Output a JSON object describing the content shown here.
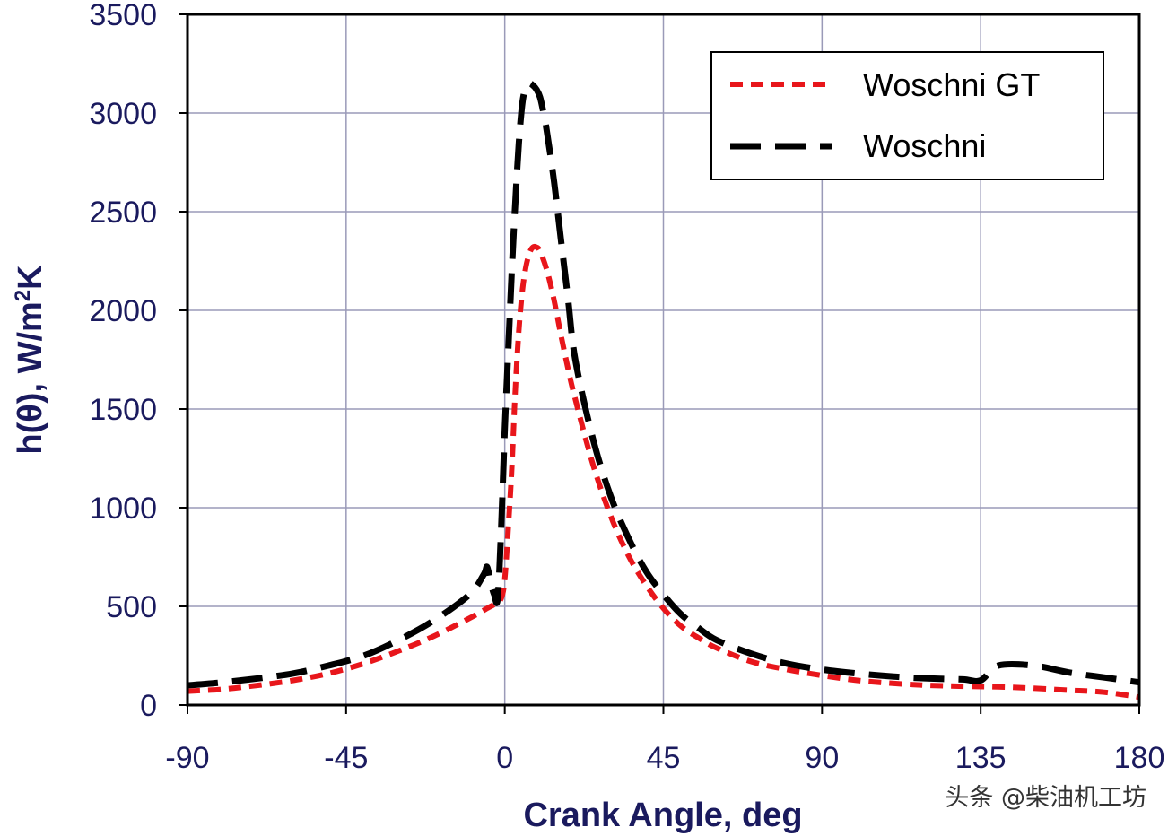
{
  "chart_data": {
    "type": "line",
    "title": "",
    "xlabel": "Crank Angle, deg",
    "ylabel_main": "h(θ), W/m",
    "ylabel_sup": "2",
    "ylabel_tail": "K",
    "xlim": [
      -90,
      180
    ],
    "ylim": [
      0,
      3500
    ],
    "xticks": [
      -90,
      -45,
      0,
      45,
      90,
      135,
      180
    ],
    "yticks": [
      0,
      500,
      1000,
      1500,
      2000,
      2500,
      3000,
      3500
    ],
    "grid": true,
    "legend_position": "top-right",
    "series": [
      {
        "name": "Woschni GT",
        "color": "#e8161b",
        "style": "short-dash",
        "x": [
          -90,
          -80,
          -70,
          -60,
          -50,
          -40,
          -30,
          -20,
          -10,
          -5,
          -3,
          -1,
          0,
          1,
          2,
          3,
          4,
          5,
          6,
          7,
          8,
          9,
          10,
          12,
          14,
          16,
          18,
          20,
          25,
          30,
          35,
          40,
          45,
          50,
          55,
          60,
          70,
          80,
          90,
          100,
          110,
          120,
          130,
          140,
          150,
          160,
          170,
          180
        ],
        "y": [
          70,
          80,
          100,
          125,
          160,
          210,
          275,
          350,
          440,
          490,
          510,
          540,
          640,
          900,
          1200,
          1600,
          1900,
          2100,
          2220,
          2290,
          2320,
          2320,
          2300,
          2200,
          2050,
          1870,
          1700,
          1550,
          1220,
          960,
          760,
          610,
          490,
          400,
          340,
          290,
          220,
          180,
          150,
          125,
          110,
          100,
          95,
          92,
          85,
          75,
          65,
          40
        ]
      },
      {
        "name": "Woschni",
        "color": "#000000",
        "style": "long-dash",
        "x": [
          -90,
          -80,
          -70,
          -60,
          -50,
          -40,
          -30,
          -20,
          -10,
          -6,
          -5,
          -4,
          -3,
          -2,
          -1,
          0,
          1,
          2,
          3,
          4,
          5,
          6,
          7,
          8,
          9,
          10,
          11,
          12,
          14,
          16,
          18,
          20,
          25,
          30,
          35,
          40,
          45,
          50,
          55,
          60,
          70,
          80,
          90,
          100,
          110,
          120,
          130,
          135,
          140,
          150,
          160,
          170,
          180
        ],
        "y": [
          100,
          115,
          135,
          160,
          200,
          250,
          330,
          430,
          560,
          660,
          700,
          620,
          560,
          540,
          900,
          1400,
          1800,
          2200,
          2550,
          2850,
          3050,
          3130,
          3150,
          3140,
          3120,
          3080,
          3000,
          2900,
          2650,
          2350,
          2050,
          1750,
          1350,
          1060,
          850,
          680,
          560,
          460,
          390,
          330,
          260,
          210,
          180,
          160,
          145,
          135,
          130,
          125,
          200,
          200,
          165,
          140,
          115
        ]
      }
    ]
  },
  "watermark": "头条 @柴油机工坊"
}
